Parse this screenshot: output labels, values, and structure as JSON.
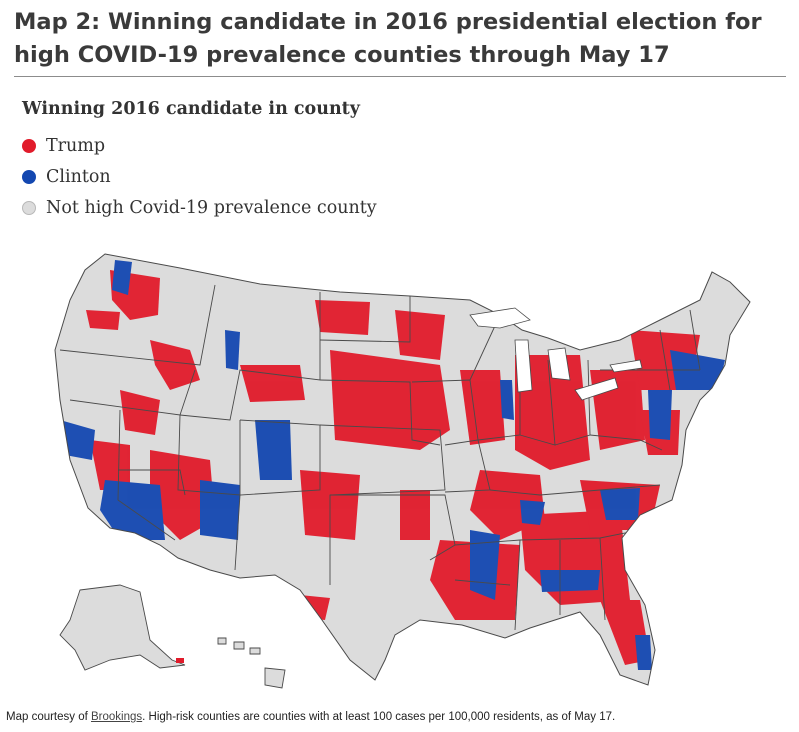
{
  "header": {
    "title": "Map 2: Winning candidate in 2016 presidential election for high COVID-19 prevalence counties through May 17"
  },
  "legend": {
    "title": "Winning 2016 candidate in county",
    "items": [
      {
        "label": "Trump",
        "color": "#e11b2b"
      },
      {
        "label": "Clinton",
        "color": "#1347b0"
      },
      {
        "label": "Not high Covid-19 prevalence county",
        "color": "#dcdcdc"
      }
    ]
  },
  "map": {
    "land_color": "#dcdcdc",
    "border_color": "#4a4a4a",
    "trump_color": "#e11b2b",
    "clinton_color": "#1347b0"
  },
  "caption": {
    "prefix": "Map courtesy of ",
    "link_text": "Brookings",
    "suffix": ". High-risk counties are counties with at least 100 cases per 100,000 residents, as of May 17."
  }
}
